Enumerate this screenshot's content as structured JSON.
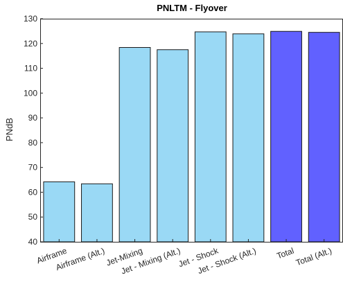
{
  "chart_data": {
    "type": "bar",
    "title": "PNLTM - Flyover",
    "xlabel": "",
    "ylabel": "PNdB",
    "ylim": [
      40,
      130
    ],
    "yticks": [
      40,
      50,
      60,
      70,
      80,
      90,
      100,
      110,
      120,
      130
    ],
    "grid": false,
    "categories": [
      "Airframe",
      "Airframe (Alt.)",
      "Jet-Mixing",
      "Jet - Mixing (Alt.)",
      "Jet - Shock",
      "Jet - Shock (Alt.)",
      "Total",
      "Total (Alt.)"
    ],
    "values": [
      64.2,
      63.4,
      118.4,
      117.5,
      124.7,
      123.9,
      124.9,
      124.5
    ],
    "colors": [
      "#9ad9f5",
      "#9ad9f5",
      "#9ad9f5",
      "#9ad9f5",
      "#9ad9f5",
      "#9ad9f5",
      "#6161ff",
      "#6161ff"
    ]
  }
}
